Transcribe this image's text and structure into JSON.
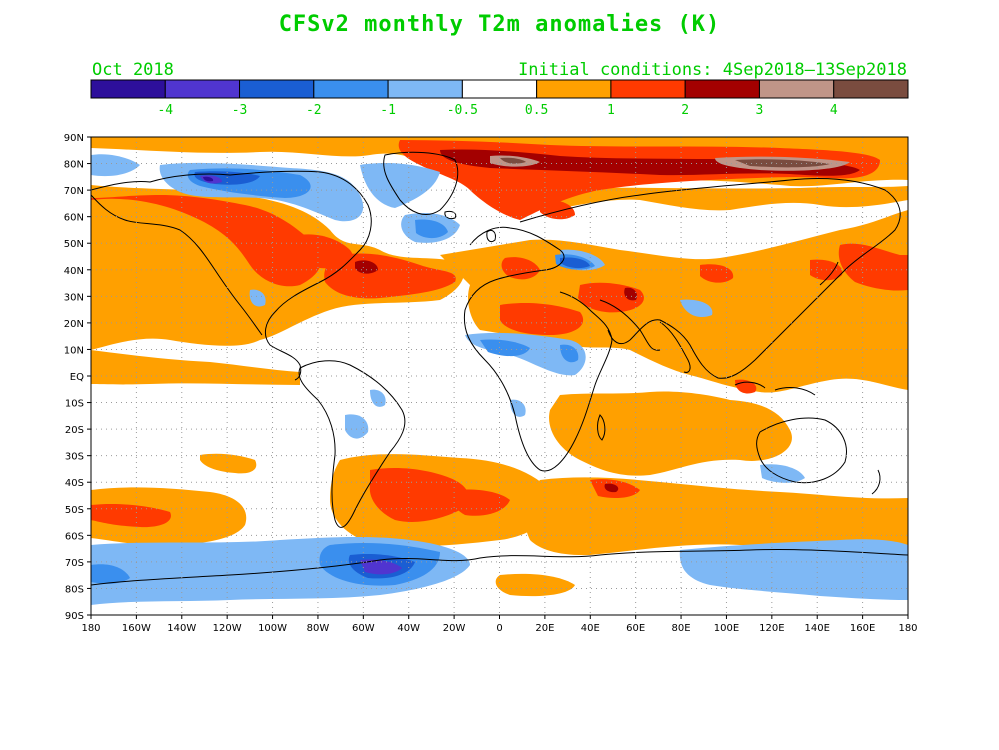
{
  "title": "CFSv2 monthly T2m anomalies (K)",
  "valid_month": "Oct 2018",
  "initial_conditions": "Initial conditions: 4Sep2018–13Sep2018",
  "colorbar": {
    "colors": [
      "#2d0f9b",
      "#5035d0",
      "#1a5ed3",
      "#3a8fee",
      "#7eb8f5",
      "#ffffff",
      "#ffa000",
      "#ff3a00",
      "#a30000",
      "#c09588",
      "#7a4c3f"
    ],
    "labels": [
      "-4",
      "-3",
      "-2",
      "-1",
      "-0.5",
      "0.5",
      "1",
      "2",
      "3",
      "4"
    ],
    "label_color": "#00cc00"
  },
  "lat_labels": [
    "90N",
    "80N",
    "70N",
    "60N",
    "50N",
    "40N",
    "30N",
    "20N",
    "10N",
    "EQ",
    "10S",
    "20S",
    "30S",
    "40S",
    "50S",
    "60S",
    "70S",
    "80S",
    "90S"
  ],
  "lon_labels": [
    "180",
    "160W",
    "140W",
    "120W",
    "100W",
    "80W",
    "60W",
    "40W",
    "20W",
    "0",
    "20E",
    "40E",
    "60E",
    "80E",
    "100E",
    "120E",
    "140E",
    "160E",
    "180"
  ],
  "colors": {
    "title": "#00cc00",
    "orange": "#ffa000",
    "red": "#ff3a00",
    "darkred": "#a30000",
    "pinkbrown": "#c09588",
    "brown": "#7a4c3f",
    "lightblue": "#7eb8f5",
    "midblue": "#3a8fee",
    "blue": "#1a5ed3",
    "purple": "#5035d0",
    "darkpurple": "#2d0f9b"
  }
}
